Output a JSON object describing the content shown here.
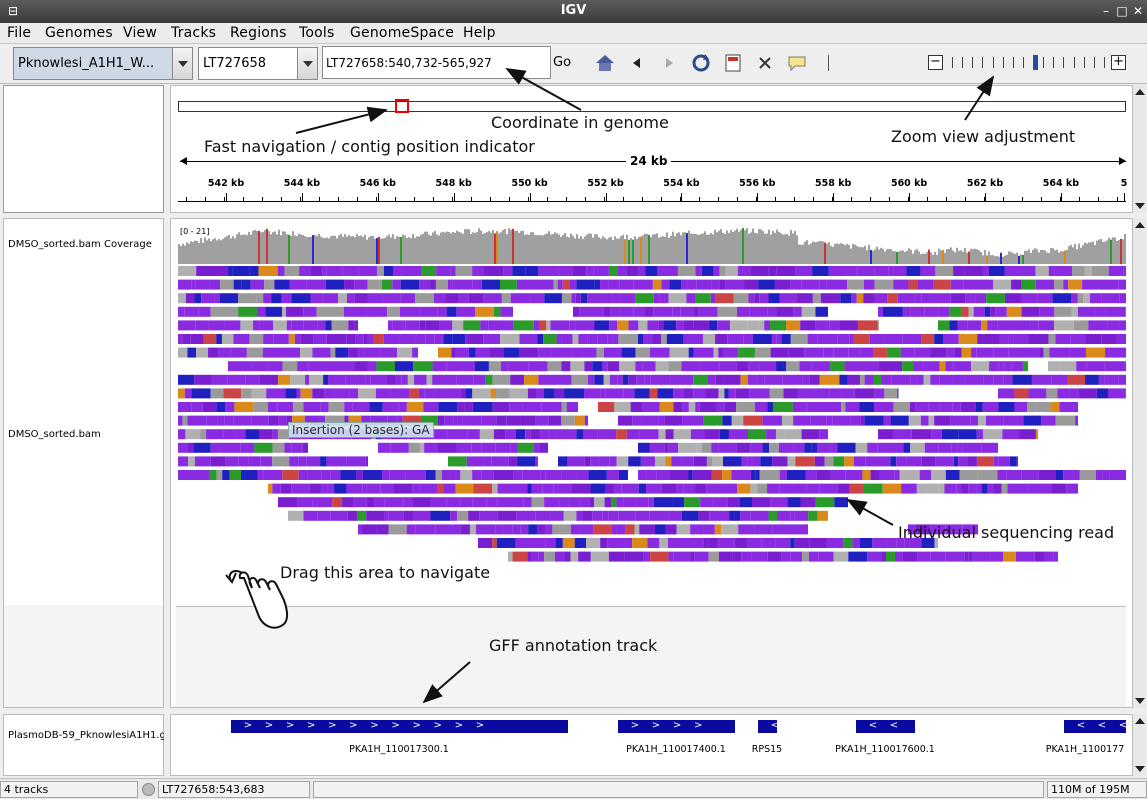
{
  "window": {
    "title": "IGV"
  },
  "menu": [
    "File",
    "Genomes",
    "View",
    "Tracks",
    "Regions",
    "Tools",
    "GenomeSpace",
    "Help"
  ],
  "toolbar": {
    "genome": "Pknowlesi_A1H1_W...",
    "chromosome": "LT727658",
    "locus": "LT727658:540,732-565,927",
    "go_label": "Go",
    "icons": [
      "home-icon",
      "back-icon",
      "forward-icon",
      "refresh-icon",
      "roi-icon",
      "resize-icon",
      "popup-text-icon"
    ]
  },
  "zoom": {
    "minus": "−",
    "plus": "+",
    "level_fraction": 0.55
  },
  "header": {
    "span": "24 kb",
    "ticks": [
      "542 kb",
      "544 kb",
      "546 kb",
      "548 kb",
      "550 kb",
      "552 kb",
      "554 kb",
      "556 kb",
      "558 kb",
      "560 kb",
      "562 kb",
      "564 kb",
      "5"
    ]
  },
  "tracks": {
    "coverage_name": "DMSO_sorted.bam Coverage",
    "coverage_range": "[0 - 21]",
    "alignment_name": "DMSO_sorted.bam",
    "annotation_name": "PlasmoDB-59_PknowlesiA1H1.g",
    "tooltip": "Insertion (2 bases): GA"
  },
  "features": [
    {
      "label": "PKA1H_110017300.1",
      "dir": ">"
    },
    {
      "label": "PKA1H_110017400.1",
      "dir": ">"
    },
    {
      "label": "RPS15",
      "dir": "<"
    },
    {
      "label": "PKA1H_110017600.1",
      "dir": "<"
    },
    {
      "label": "PKA1H_1100177",
      "dir": "<"
    }
  ],
  "annotations": {
    "coordinate": "Coordinate in genome",
    "fastnav": "Fast navigation / contig position indicator",
    "zoom": "Zoom view adjustment",
    "read": "Individual sequencing read",
    "drag": "Drag this area to navigate",
    "gff": "GFF annotation track"
  },
  "status": {
    "tracks": "4 tracks",
    "position": "LT727658:543,683",
    "memory": "110M of 195M"
  },
  "colors": {
    "read_purple": "#8a2be2",
    "read_blue": "#2020c0",
    "coverage_gray": "#a0a0a0",
    "feature_blue": "#0a0aa0",
    "nav_box_red": "#ee0000"
  }
}
